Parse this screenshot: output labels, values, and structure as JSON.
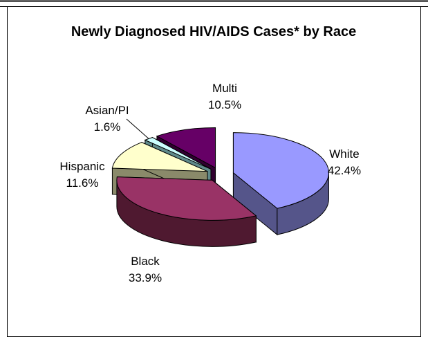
{
  "chart_data": {
    "type": "pie",
    "three_d": true,
    "exploded": true,
    "title": "Newly Diagnosed HIV/AIDS Cases* by Race",
    "legend": "none",
    "slices": [
      {
        "label": "White",
        "value": 42.4,
        "value_label": "42.4%",
        "color": "#9999ff",
        "side_color": "#55558a"
      },
      {
        "label": "Black",
        "value": 33.9,
        "value_label": "33.9%",
        "color": "#993366",
        "side_color": "#4f1930"
      },
      {
        "label": "Hispanic",
        "value": 11.6,
        "value_label": "11.6%",
        "color": "#ffffcc",
        "side_color": "#8a8a6a"
      },
      {
        "label": "Asian/PI",
        "value": 1.6,
        "value_label": "1.6%",
        "color": "#ccffff",
        "side_color": "#5f8a8a"
      },
      {
        "label": "Multi",
        "value": 10.5,
        "value_label": "10.5%",
        "color": "#660066",
        "side_color": "#300030"
      }
    ]
  }
}
